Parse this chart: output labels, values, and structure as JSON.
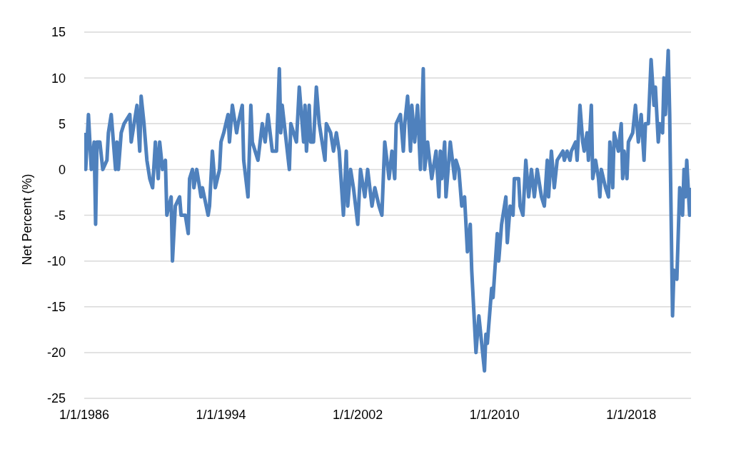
{
  "chart_data": {
    "type": "line",
    "ylabel": "Net Percent (%)",
    "x": [
      "1986-01",
      "1986-02",
      "1986-04",
      "1986-06",
      "1986-08",
      "1986-09",
      "1986-10",
      "1986-12",
      "1987-02",
      "1987-05",
      "1987-06",
      "1987-08",
      "1987-11",
      "1987-12",
      "1988-01",
      "1988-03",
      "1988-05",
      "1988-09",
      "1988-10",
      "1988-12",
      "1989-02",
      "1989-04",
      "1989-05",
      "1989-07",
      "1989-09",
      "1989-11",
      "1990-01",
      "1990-03",
      "1990-05",
      "1990-06",
      "1990-08",
      "1990-10",
      "1990-11",
      "1991-02",
      "1991-03",
      "1991-05",
      "1991-08",
      "1991-09",
      "1991-12",
      "1992-02",
      "1992-03",
      "1992-05",
      "1992-06",
      "1992-08",
      "1992-11",
      "1992-12",
      "1993-04",
      "1993-05",
      "1993-07",
      "1993-09",
      "1993-12",
      "1994-01",
      "1994-03",
      "1994-06",
      "1994-07",
      "1994-09",
      "1994-12",
      "1995-01",
      "1995-04",
      "1995-05",
      "1995-08",
      "1995-10",
      "1995-11",
      "1996-03",
      "1996-06",
      "1996-08",
      "1996-10",
      "1997-01",
      "1997-04",
      "1997-06",
      "1997-07",
      "1997-08",
      "1998-01",
      "1998-02",
      "1998-06",
      "1998-08",
      "1998-11",
      "1998-12",
      "1999-01",
      "1999-03",
      "1999-04",
      "1999-06",
      "1999-08",
      "1999-10",
      "2000-02",
      "2000-03",
      "2000-06",
      "2000-08",
      "2000-10",
      "2000-12",
      "2001-03",
      "2001-05",
      "2001-06",
      "2001-08",
      "2001-10",
      "2002-01",
      "2002-03",
      "2002-06",
      "2002-08",
      "2002-11",
      "2003-01",
      "2003-04",
      "2003-06",
      "2003-07",
      "2003-08",
      "2003-11",
      "2004-01",
      "2004-03",
      "2004-04",
      "2004-07",
      "2004-09",
      "2004-10",
      "2004-12",
      "2005-02",
      "2005-03",
      "2005-05",
      "2005-07",
      "2005-09",
      "2005-11",
      "2005-12",
      "2006-02",
      "2006-05",
      "2006-08",
      "2006-10",
      "2006-11",
      "2006-12",
      "2007-02",
      "2007-03",
      "2007-06",
      "2007-09",
      "2007-10",
      "2007-12",
      "2008-02",
      "2008-04",
      "2008-06",
      "2008-08",
      "2008-09",
      "2008-12",
      "2009-02",
      "2009-06",
      "2009-07",
      "2009-08",
      "2009-11",
      "2009-12",
      "2010-03",
      "2010-04",
      "2010-06",
      "2010-09",
      "2010-10",
      "2010-12",
      "2011-02",
      "2011-03",
      "2011-06",
      "2011-07",
      "2011-09",
      "2011-11",
      "2012-01",
      "2012-03",
      "2012-05",
      "2012-07",
      "2012-10",
      "2012-12",
      "2013-02",
      "2013-03",
      "2013-05",
      "2013-07",
      "2013-09",
      "2014-01",
      "2014-02",
      "2014-04",
      "2014-06",
      "2014-07",
      "2014-10",
      "2014-11",
      "2015-01",
      "2015-03",
      "2015-04",
      "2015-06",
      "2015-07",
      "2015-09",
      "2015-10",
      "2015-12",
      "2016-02",
      "2016-03",
      "2016-04",
      "2016-07",
      "2016-09",
      "2016-10",
      "2016-12",
      "2017-01",
      "2017-04",
      "2017-06",
      "2017-07",
      "2017-08",
      "2017-10",
      "2017-11",
      "2018-02",
      "2018-04",
      "2018-06",
      "2018-08",
      "2018-10",
      "2018-11",
      "2019-01",
      "2019-03",
      "2019-05",
      "2019-06",
      "2019-08",
      "2019-09",
      "2019-11",
      "2019-12",
      "2020-01",
      "2020-03",
      "2020-04",
      "2020-06",
      "2020-07",
      "2020-09",
      "2020-11",
      "2021-01",
      "2021-02",
      "2021-03",
      "2021-04",
      "2021-06",
      "2021-07"
    ],
    "series": [
      {
        "color": "#4f81bd",
        "values": [
          4,
          0,
          6,
          0,
          3,
          -6,
          3,
          3,
          0,
          1,
          4,
          6,
          0,
          3,
          0,
          4,
          5,
          6,
          3,
          5,
          7,
          2,
          8,
          5,
          1,
          -1,
          -2,
          3,
          -1,
          3,
          0,
          1,
          -5,
          -3,
          -10,
          -4,
          -3,
          -5,
          -5,
          -7,
          -1,
          0,
          -2,
          0,
          -3,
          -2,
          -5,
          -4,
          2,
          -2,
          0,
          3,
          4,
          6,
          3,
          7,
          4,
          5,
          7,
          1,
          -3,
          7,
          3,
          1,
          5,
          3,
          6,
          2,
          2,
          11,
          4,
          7,
          0,
          5,
          3,
          9,
          3,
          7,
          2,
          7,
          3,
          3,
          9,
          5,
          1,
          5,
          4,
          2,
          4,
          2,
          -5,
          2,
          -4,
          0,
          -2,
          -6,
          0,
          -3,
          0,
          -4,
          -2,
          -4,
          -5,
          -1,
          3,
          -1,
          2,
          -1,
          5,
          6,
          2,
          5,
          8,
          2,
          7,
          3,
          7,
          0,
          11,
          0,
          3,
          -1,
          2,
          -3,
          2,
          -1,
          3,
          -3,
          3,
          -1,
          1,
          0,
          -4,
          -3,
          -9,
          -6,
          -11,
          -20,
          -16,
          -22,
          -18,
          -19,
          -13,
          -14,
          -7,
          -10,
          -6,
          -3,
          -8,
          -4,
          -5,
          -1,
          -1,
          -4,
          -5,
          1,
          -3,
          0,
          -3,
          0,
          -3,
          -4,
          1,
          -3,
          2,
          -2,
          1,
          2,
          1,
          2,
          1,
          2,
          3,
          1,
          7,
          3,
          2,
          4,
          1,
          7,
          -1,
          1,
          -1,
          -3,
          0,
          -2,
          -3,
          3,
          -2,
          4,
          2,
          5,
          -1,
          2,
          -1,
          3,
          4,
          7,
          3,
          6,
          1,
          5,
          5,
          12,
          7,
          9,
          3,
          5,
          4,
          10,
          6,
          13,
          6,
          -16,
          -11,
          -12,
          -2,
          -5,
          0,
          -3,
          1,
          -5,
          -2
        ]
      }
    ],
    "xlim": [
      "1986-01",
      "2021-07"
    ],
    "xticks": [
      {
        "value": "1986-01-01",
        "label": "1/1/1986"
      },
      {
        "value": "1994-01-01",
        "label": "1/1/1994"
      },
      {
        "value": "2002-01-01",
        "label": "1/1/2002"
      },
      {
        "value": "2010-01-01",
        "label": "1/1/2010"
      },
      {
        "value": "2018-01-01",
        "label": "1/1/2018"
      }
    ],
    "ylim": [
      -25,
      15
    ],
    "yticks": [
      -25,
      -20,
      -15,
      -10,
      -5,
      0,
      5,
      10,
      15
    ],
    "grid": "y",
    "legend": false,
    "marker": "none",
    "line_style": "solid"
  }
}
